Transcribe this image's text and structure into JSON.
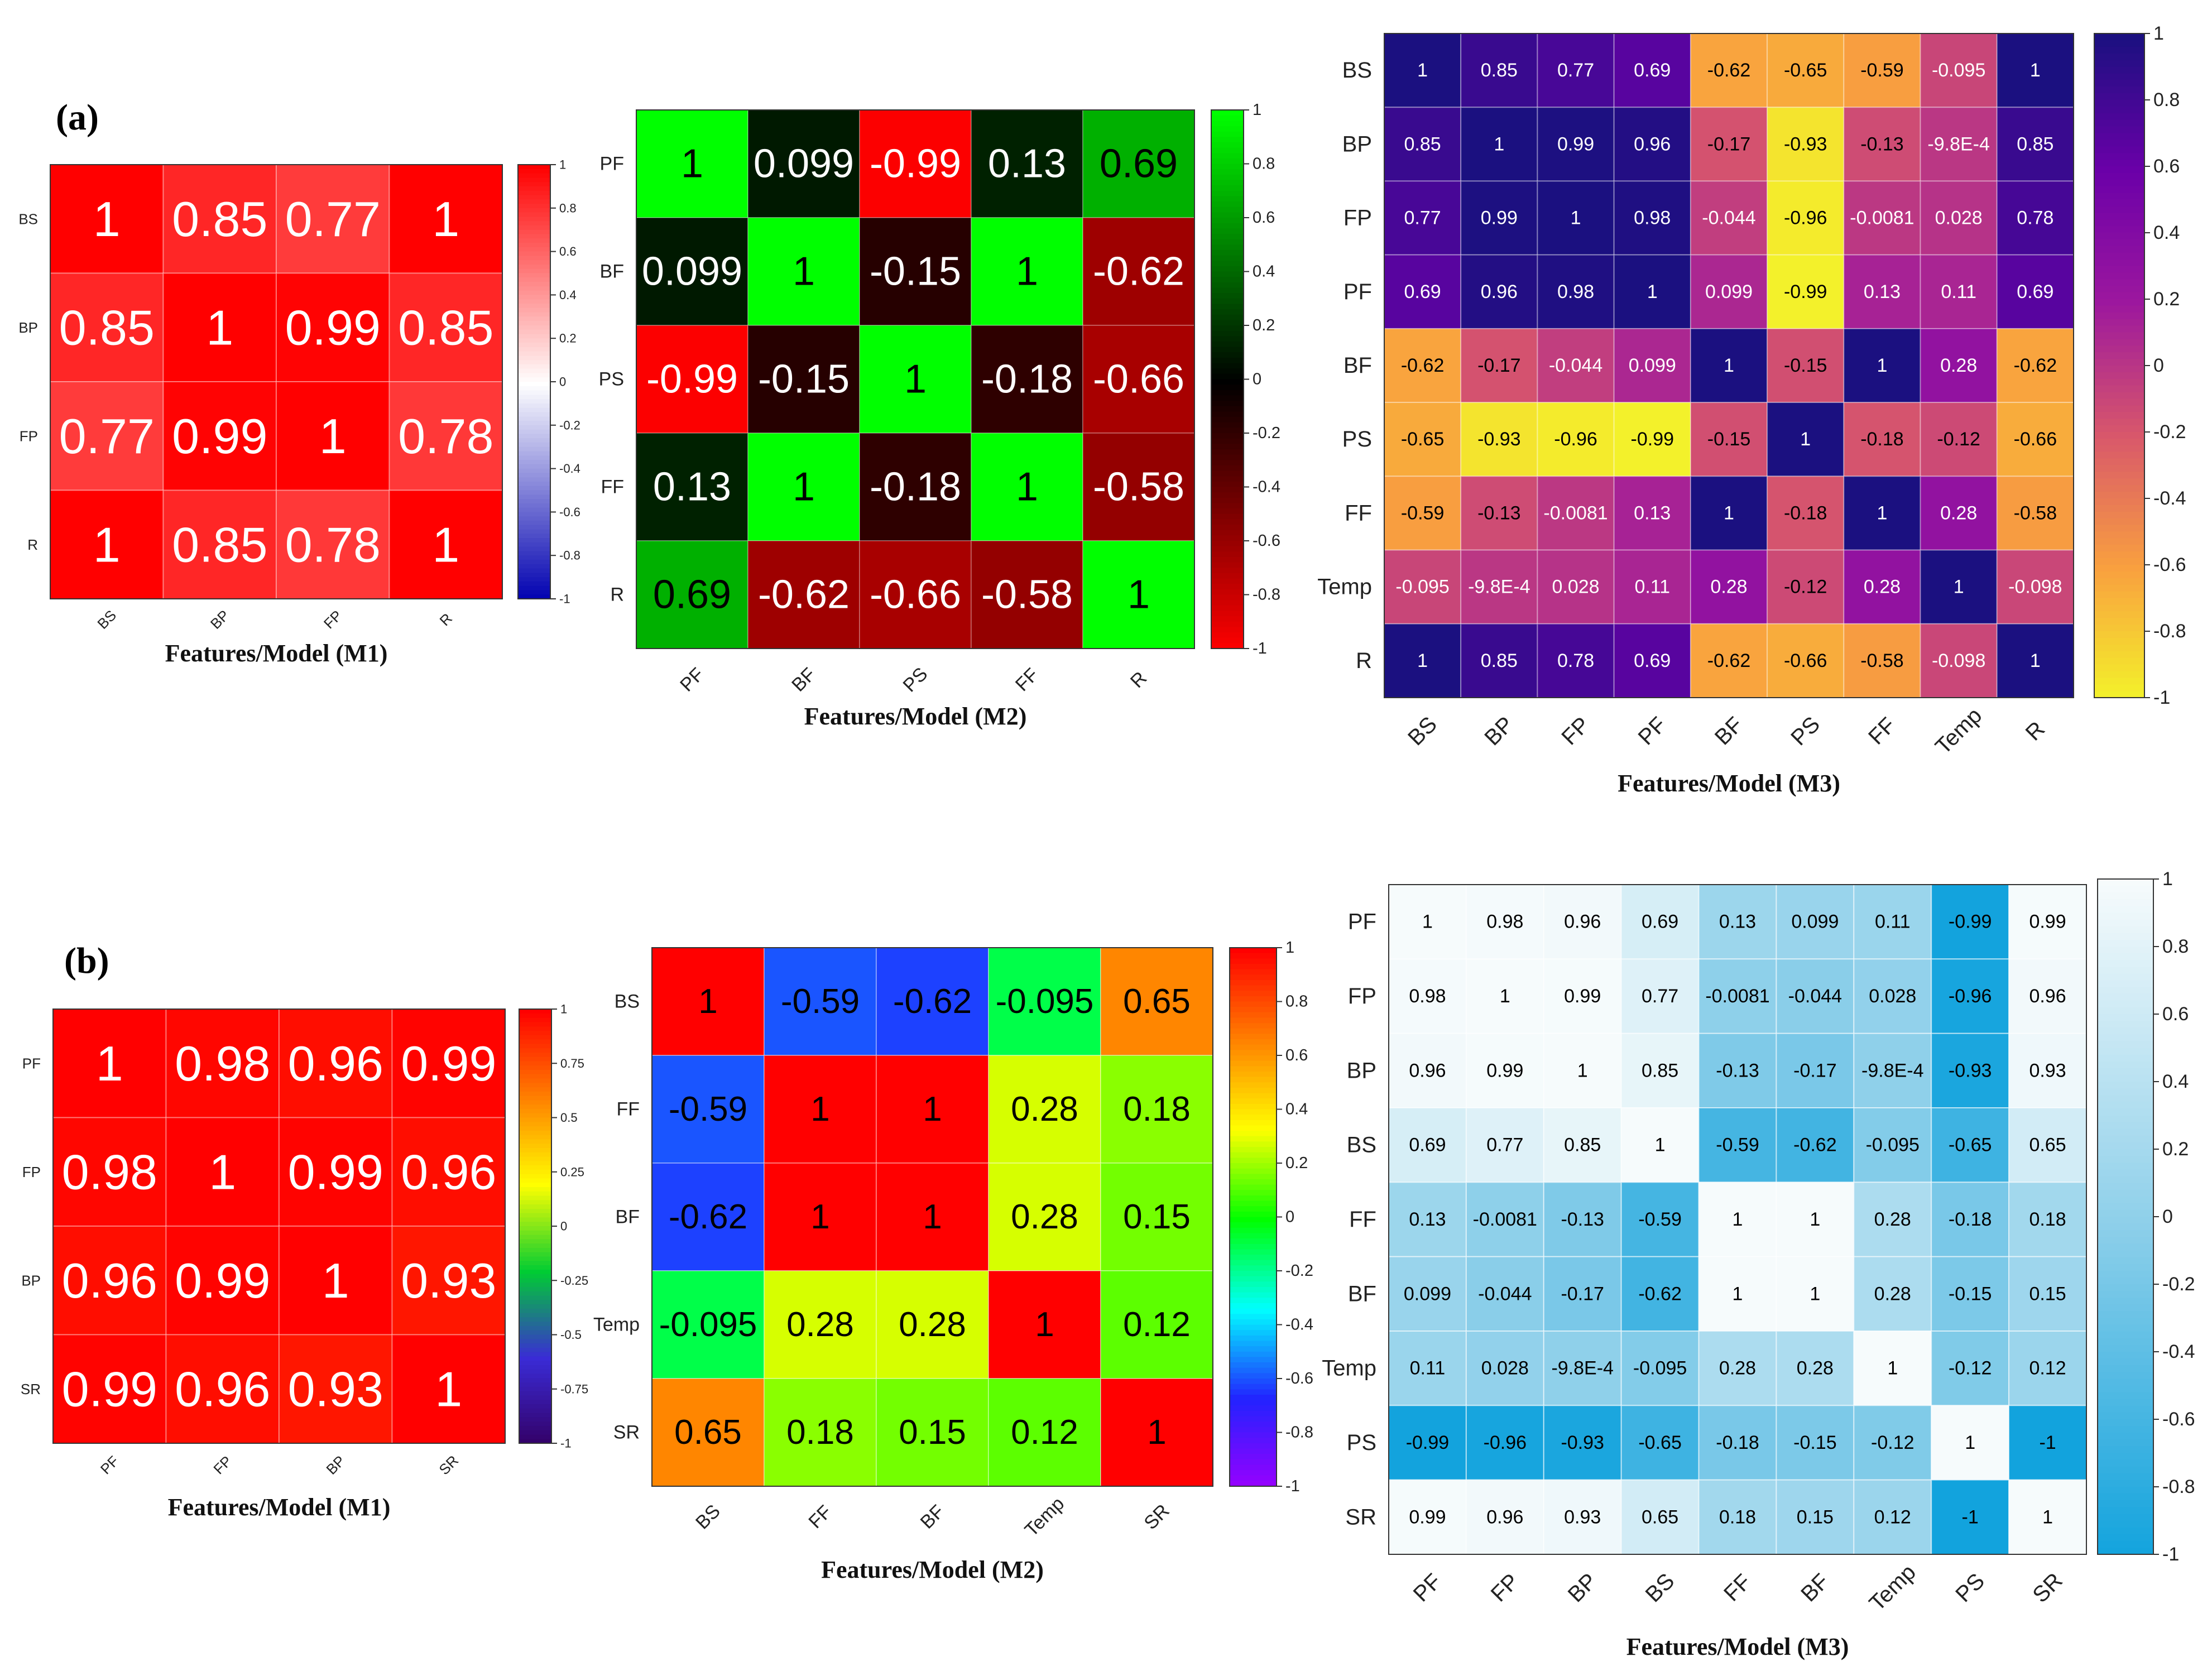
{
  "panel_labels": [
    "(a)",
    "(b)"
  ],
  "chart_data": [
    {
      "type": "heatmap",
      "panel": "(a)",
      "title": "",
      "xlabel": "Features/Model (M1)",
      "labels": [
        "BS",
        "BP",
        "FP",
        "R"
      ],
      "matrix": [
        [
          "1",
          "0.85",
          "0.77",
          "1"
        ],
        [
          "0.85",
          "1",
          "0.99",
          "0.85"
        ],
        [
          "0.77",
          "0.99",
          "1",
          "0.78"
        ],
        [
          "1",
          "0.85",
          "0.78",
          "1"
        ]
      ],
      "colormap": [
        "#0000b0",
        "#ffffff",
        "#ff0000"
      ],
      "colorbar_ticks": [
        "1",
        "0.8",
        "0.6",
        "0.4",
        "0.2",
        "0",
        "-0.2",
        "-0.4",
        "-0.6",
        "-0.8",
        "-1"
      ],
      "range": [
        -1,
        1
      ]
    },
    {
      "type": "heatmap",
      "panel": "(a)",
      "title": "",
      "xlabel": "Features/Model (M2)",
      "labels": [
        "PF",
        "BF",
        "PS",
        "FF",
        "R"
      ],
      "matrix": [
        [
          "1",
          "0.099",
          "-0.99",
          "0.13",
          "0.69"
        ],
        [
          "0.099",
          "1",
          "-0.15",
          "1",
          "-0.62"
        ],
        [
          "-0.99",
          "-0.15",
          "1",
          "-0.18",
          "-0.66"
        ],
        [
          "0.13",
          "1",
          "-0.18",
          "1",
          "-0.58"
        ],
        [
          "0.69",
          "-0.62",
          "-0.66",
          "-0.58",
          "1"
        ]
      ],
      "colormap": [
        "#ff0000",
        "#000000",
        "#00ff00"
      ],
      "colorbar_ticks": [
        "1",
        "0.8",
        "0.6",
        "0.4",
        "0.2",
        "0",
        "-0.2",
        "-0.4",
        "-0.6",
        "-0.8",
        "-1"
      ],
      "range": [
        -1,
        1
      ]
    },
    {
      "type": "heatmap",
      "panel": "(a)",
      "title": "",
      "xlabel": "Features/Model (M3)",
      "labels": [
        "BS",
        "BP",
        "FP",
        "PF",
        "BF",
        "PS",
        "FF",
        "Temp",
        "R"
      ],
      "matrix": [
        [
          "1",
          "0.85",
          "0.77",
          "0.69",
          "-0.62",
          "-0.65",
          "-0.59",
          "-0.095",
          "1"
        ],
        [
          "0.85",
          "1",
          "0.99",
          "0.96",
          "-0.17",
          "-0.93",
          "-0.13",
          "-9.8E-4",
          "0.85"
        ],
        [
          "0.77",
          "0.99",
          "1",
          "0.98",
          "-0.044",
          "-0.96",
          "-0.0081",
          "0.028",
          "0.78"
        ],
        [
          "0.69",
          "0.96",
          "0.98",
          "1",
          "0.099",
          "-0.99",
          "0.13",
          "0.11",
          "0.69"
        ],
        [
          "-0.62",
          "-0.17",
          "-0.044",
          "0.099",
          "1",
          "-0.15",
          "1",
          "0.28",
          "-0.62"
        ],
        [
          "-0.65",
          "-0.93",
          "-0.96",
          "-0.99",
          "-0.15",
          "1",
          "-0.18",
          "-0.12",
          "-0.66"
        ],
        [
          "-0.59",
          "-0.13",
          "-0.0081",
          "0.13",
          "1",
          "-0.18",
          "1",
          "0.28",
          "-0.58"
        ],
        [
          "-0.095",
          "-9.8E-4",
          "0.028",
          "0.11",
          "0.28",
          "-0.12",
          "0.28",
          "1",
          "-0.098"
        ],
        [
          "1",
          "0.85",
          "0.78",
          "0.69",
          "-0.62",
          "-0.66",
          "-0.58",
          "-0.098",
          "1"
        ]
      ],
      "colormap": [
        "#f3f32a",
        "#f9a03f",
        "#d8576b",
        "#9c179e",
        "#6a00a8",
        "#1b1080"
      ],
      "colorbar_ticks": [
        "1",
        "0.8",
        "0.6",
        "0.4",
        "0.2",
        "0",
        "-0.2",
        "-0.4",
        "-0.6",
        "-0.8",
        "-1"
      ],
      "range": [
        -1,
        1
      ]
    },
    {
      "type": "heatmap",
      "panel": "(b)",
      "title": "",
      "xlabel": "Features/Model (M1)",
      "labels": [
        "PF",
        "FP",
        "BP",
        "SR"
      ],
      "matrix": [
        [
          "1",
          "0.98",
          "0.96",
          "0.99"
        ],
        [
          "0.98",
          "1",
          "0.99",
          "0.96"
        ],
        [
          "0.96",
          "0.99",
          "1",
          "0.93"
        ],
        [
          "0.99",
          "0.96",
          "0.93",
          "1"
        ]
      ],
      "colormap": [
        "#330066",
        "#3a2bd6",
        "#00cc33",
        "#ffff00",
        "#ff8000",
        "#ff0000"
      ],
      "colorbar_ticks": [
        "1",
        "0.75",
        "0.5",
        "0.25",
        "0",
        "-0.25",
        "-0.5",
        "-0.75",
        "-1"
      ],
      "range": [
        -1,
        1
      ]
    },
    {
      "type": "heatmap",
      "panel": "(b)",
      "title": "",
      "xlabel": "Features/Model (M2)",
      "labels": [
        "BS",
        "FF",
        "BF",
        "Temp",
        "SR"
      ],
      "matrix": [
        [
          "1",
          "-0.59",
          "-0.62",
          "-0.095",
          "0.65"
        ],
        [
          "-0.59",
          "1",
          "1",
          "0.28",
          "0.18"
        ],
        [
          "-0.62",
          "1",
          "1",
          "0.28",
          "0.15"
        ],
        [
          "-0.095",
          "0.28",
          "0.28",
          "1",
          "0.12"
        ],
        [
          "0.65",
          "0.18",
          "0.15",
          "0.12",
          "1"
        ]
      ],
      "colormap": [
        "#9900ff",
        "#2222ff",
        "#00ffff",
        "#00ff00",
        "#ffff00",
        "#ff8000",
        "#ff0000"
      ],
      "colorbar_ticks": [
        "1",
        "0.8",
        "0.6",
        "0.4",
        "0.2",
        "0",
        "-0.2",
        "-0.4",
        "-0.6",
        "-0.8",
        "-1"
      ],
      "range": [
        -1,
        1
      ]
    },
    {
      "type": "heatmap",
      "panel": "(b)",
      "title": "",
      "xlabel": "Features/Model (M3)",
      "labels": [
        "PF",
        "FP",
        "BP",
        "BS",
        "FF",
        "BF",
        "Temp",
        "PS",
        "SR"
      ],
      "matrix": [
        [
          "1",
          "0.98",
          "0.96",
          "0.69",
          "0.13",
          "0.099",
          "0.11",
          "-0.99",
          "0.99"
        ],
        [
          "0.98",
          "1",
          "0.99",
          "0.77",
          "-0.0081",
          "-0.044",
          "0.028",
          "-0.96",
          "0.96"
        ],
        [
          "0.96",
          "0.99",
          "1",
          "0.85",
          "-0.13",
          "-0.17",
          "-9.8E-4",
          "-0.93",
          "0.93"
        ],
        [
          "0.69",
          "0.77",
          "0.85",
          "1",
          "-0.59",
          "-0.62",
          "-0.095",
          "-0.65",
          "0.65"
        ],
        [
          "0.13",
          "-0.0081",
          "-0.13",
          "-0.59",
          "1",
          "1",
          "0.28",
          "-0.18",
          "0.18"
        ],
        [
          "0.099",
          "-0.044",
          "-0.17",
          "-0.62",
          "1",
          "1",
          "0.28",
          "-0.15",
          "0.15"
        ],
        [
          "0.11",
          "0.028",
          "-9.8E-4",
          "-0.095",
          "0.28",
          "0.28",
          "1",
          "-0.12",
          "0.12"
        ],
        [
          "-0.99",
          "-0.96",
          "-0.93",
          "-0.65",
          "-0.18",
          "-0.15",
          "-0.12",
          "1",
          "-1"
        ],
        [
          "0.99",
          "0.96",
          "0.93",
          "0.65",
          "0.18",
          "0.15",
          "0.12",
          "-1",
          "1"
        ]
      ],
      "colormap": [
        "#12a3dd",
        "#8fd0ea",
        "#f6fbfc"
      ],
      "colorbar_ticks": [
        "1",
        "0.8",
        "0.6",
        "0.4",
        "0.2",
        "0",
        "-0.2",
        "-0.4",
        "-0.6",
        "-0.8",
        "-1"
      ],
      "range": [
        -1,
        1
      ]
    }
  ]
}
